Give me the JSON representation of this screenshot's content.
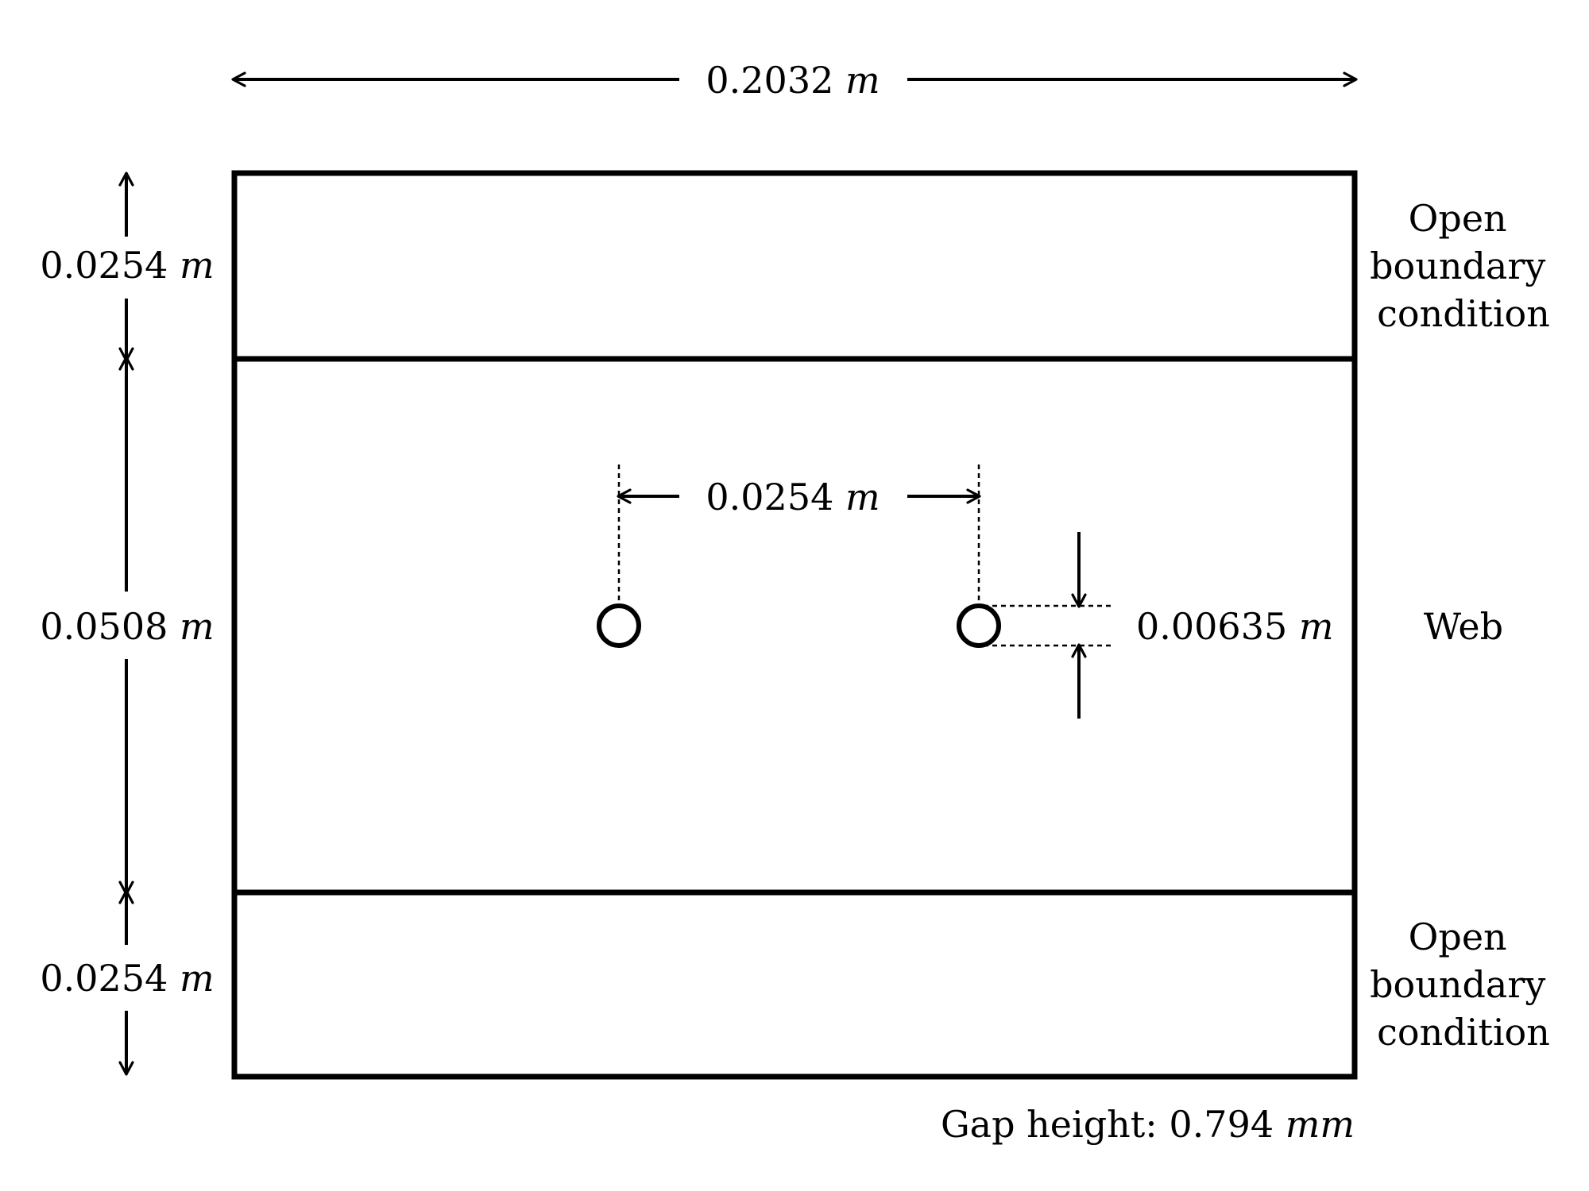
{
  "diagram": {
    "width_label": {
      "value": "0.2032",
      "unit": "m"
    },
    "top_region_label": {
      "value": "0.0254",
      "unit": "m"
    },
    "web_region_label": {
      "value": "0.0508",
      "unit": "m"
    },
    "bottom_region_label": {
      "value": "0.0254",
      "unit": "m"
    },
    "hole_spacing_label": {
      "value": "0.0254",
      "unit": "m"
    },
    "hole_diameter_label": {
      "value": "0.00635",
      "unit": "m"
    },
    "top_region_name": [
      "Open",
      "boundary",
      "condition"
    ],
    "web_region_name": "Web",
    "bottom_region_name": [
      "Open",
      "boundary",
      "condition"
    ],
    "gap_height": {
      "label": "Gap height:",
      "value": "0.794",
      "unit": "mm"
    }
  }
}
